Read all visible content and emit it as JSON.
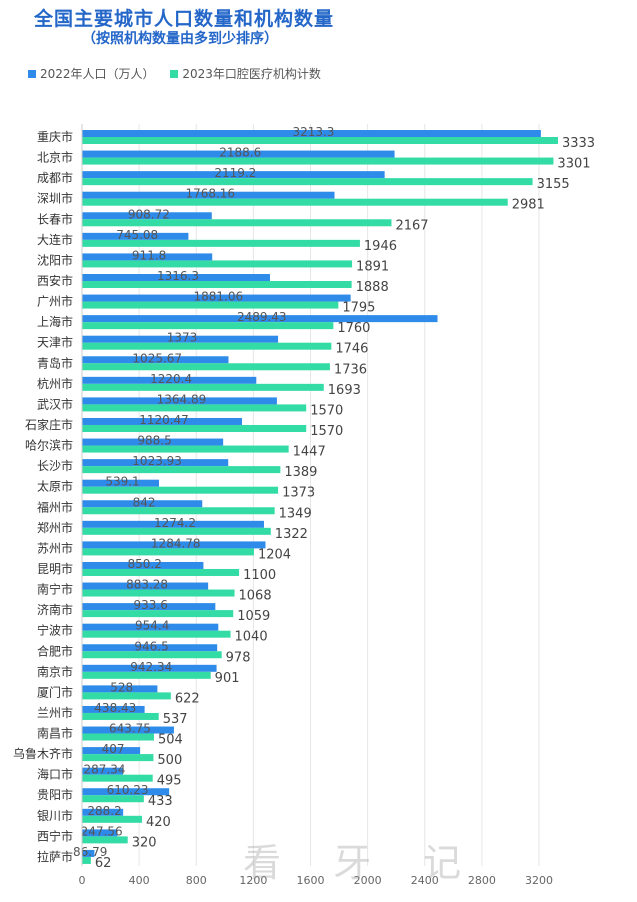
{
  "title": "全国主要城市人口数量和机构数量",
  "subtitle": "（按照机构数量由多到少排序）",
  "watermark": "看 牙 记",
  "chart_data": {
    "type": "bar",
    "orientation": "horizontal",
    "categories": [
      "重庆市",
      "北京市",
      "成都市",
      "深圳市",
      "长春市",
      "大连市",
      "沈阳市",
      "西安市",
      "广州市",
      "上海市",
      "天津市",
      "青岛市",
      "杭州市",
      "武汉市",
      "石家庄市",
      "哈尔滨市",
      "长沙市",
      "太原市",
      "福州市",
      "郑州市",
      "苏州市",
      "昆明市",
      "南宁市",
      "济南市",
      "宁波市",
      "合肥市",
      "南京市",
      "厦门市",
      "兰州市",
      "南昌市",
      "乌鲁木齐市",
      "海口市",
      "贵阳市",
      "银川市",
      "西宁市",
      "拉萨市"
    ],
    "series": [
      {
        "name": "2022年人口（万人）",
        "color": "#2f8bea",
        "values": [
          3213.3,
          2188.6,
          2119.2,
          1768.16,
          908.72,
          745.08,
          911.8,
          1316.3,
          1881.06,
          2489.43,
          1373,
          1025.67,
          1220.4,
          1364.89,
          1120.47,
          988.5,
          1023.93,
          539.1,
          842,
          1274.2,
          1284.78,
          850.2,
          883.28,
          933.6,
          954.4,
          946.5,
          942.34,
          528,
          438.43,
          643.75,
          407,
          287.34,
          610.23,
          288.2,
          247.56,
          86.79
        ],
        "labels": [
          "3213.3",
          "2188.6",
          "2119.2",
          "1768.16",
          "908.72",
          "745.08",
          "911.8",
          "1316.3",
          "1881.06",
          "2489.43",
          "1373",
          "1025.67",
          "1220.4",
          "1364.89",
          "1120.47",
          "988.5",
          "1023.93",
          "539.1",
          "842",
          "1274.2",
          "1284.78",
          "850.2",
          "883.28",
          "933.6",
          "954.4",
          "946.5",
          "942.34",
          "528",
          "438.43",
          "643.75",
          "407",
          "287.34",
          "610.23",
          "288.2",
          "247.56",
          "86.79"
        ]
      },
      {
        "name": "2023年口腔医疗机构计数",
        "color": "#33dba5",
        "values": [
          3333,
          3301,
          3155,
          2981,
          2167,
          1946,
          1891,
          1888,
          1795,
          1760,
          1746,
          1736,
          1693,
          1570,
          1570,
          1447,
          1389,
          1373,
          1349,
          1322,
          1204,
          1100,
          1068,
          1059,
          1040,
          978,
          901,
          622,
          537,
          504,
          500,
          495,
          433,
          420,
          320,
          62
        ],
        "labels": [
          "3333",
          "3301",
          "3155",
          "2981",
          "2167",
          "1946",
          "1891",
          "1888",
          "1795",
          "1760",
          "1746",
          "1736",
          "1693",
          "1570",
          "1570",
          "1447",
          "1389",
          "1373",
          "1349",
          "1322",
          "1204",
          "1100",
          "1068",
          "1059",
          "1040",
          "978",
          "901",
          "622",
          "537",
          "504",
          "500",
          "495",
          "433",
          "420",
          "320",
          "62"
        ]
      }
    ],
    "x_ticks": [
      "0",
      "400",
      "800",
      "1200",
      "1600",
      "2000",
      "2400",
      "2800",
      "3200"
    ],
    "xlim": [
      0,
      3600
    ],
    "grid": "vertical",
    "legend": "top-left"
  }
}
